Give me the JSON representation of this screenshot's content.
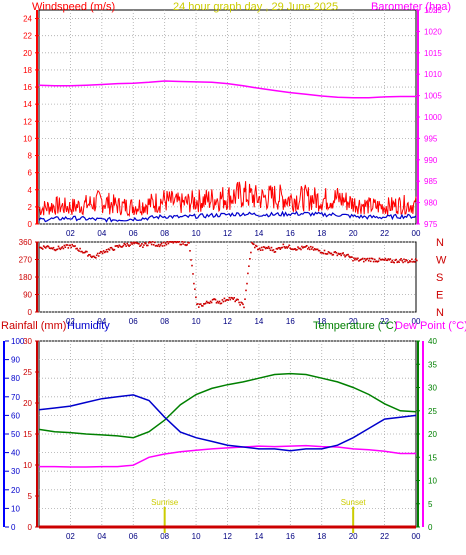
{
  "title": "24 hour graph day , 29 June 2025",
  "colors": {
    "wind": "#ff0000",
    "wind_avg": "#0000cc",
    "barometer": "#ff00ff",
    "direction": "#cc0000",
    "rain": "#cc0000",
    "humidity": "#0000cc",
    "temperature": "#008000",
    "dewpoint": "#ff00ff",
    "sun": "#cccc00",
    "grid": "#aaaaaa",
    "x_tick": "#000080",
    "y_tick_red": "#cc0000"
  },
  "x_ticks": [
    "02",
    "04",
    "06",
    "08",
    "10",
    "12",
    "14",
    "16",
    "18",
    "20",
    "22",
    "00"
  ],
  "top_panel": {
    "left_label": "Windspeed (m/s)",
    "right_label": "Barometer (hpa)",
    "left_ticks": [
      "0",
      "2",
      "4",
      "6",
      "8",
      "10",
      "12",
      "14",
      "16",
      "18",
      "20",
      "22",
      "24"
    ],
    "right_ticks": [
      "975",
      "980",
      "985",
      "990",
      "995",
      "1000",
      "1005",
      "1010",
      "1015",
      "1020",
      "1025"
    ]
  },
  "dir_panel": {
    "left_ticks": [
      "0",
      "90",
      "180",
      "270",
      "360"
    ],
    "right_labels": [
      "N",
      "W",
      "S",
      "E",
      "N"
    ]
  },
  "bottom_panel": {
    "rain_label": "Rainfall (mm)",
    "humidity_label": "Humidity",
    "temp_label": "Temperature (°C)",
    "dew_label": "Dew Point (°C)",
    "humidity_ticks": [
      "0",
      "10",
      "20",
      "30",
      "40",
      "50",
      "60",
      "70",
      "80",
      "90",
      "100"
    ],
    "rain_ticks": [
      "0",
      "5",
      "10",
      "15",
      "20",
      "25",
      "30"
    ],
    "temp_ticks": [
      "0",
      "5",
      "10",
      "15",
      "20",
      "25",
      "30",
      "35",
      "40"
    ],
    "sunrise_label": "Sunrise",
    "sunset_label": "Sunset"
  },
  "chart_data": [
    {
      "type": "line",
      "x_unit": "hour",
      "series": [
        {
          "name": "Windspeed (m/s)",
          "axis": "left",
          "x": [
            0,
            1,
            2,
            3,
            4,
            5,
            6,
            7,
            8,
            9,
            10,
            11,
            12,
            13,
            14,
            15,
            16,
            17,
            18,
            19,
            20,
            21,
            22,
            23,
            24
          ],
          "values": [
            1.5,
            1.8,
            1.6,
            1.9,
            2.2,
            1.8,
            1.7,
            2.0,
            2.3,
            2.0,
            2.4,
            2.5,
            2.8,
            3.0,
            2.7,
            2.8,
            2.6,
            2.7,
            2.6,
            2.8,
            2.2,
            1.9,
            1.8,
            2.1,
            2.0
          ],
          "gusts": [
            2.5,
            3.0,
            2.8,
            3.2,
            3.8,
            3.0,
            2.9,
            3.3,
            3.9,
            3.3,
            3.7,
            4.0,
            4.3,
            4.8,
            4.1,
            4.4,
            4.0,
            4.2,
            3.9,
            4.1,
            3.3,
            2.9,
            2.8,
            3.1,
            3.0
          ]
        },
        {
          "name": "Average wind (m/s)",
          "axis": "left",
          "x": [
            0,
            1,
            2,
            3,
            4,
            5,
            6,
            7,
            8,
            9,
            10,
            11,
            12,
            13,
            14,
            15,
            16,
            17,
            18,
            19,
            20,
            21,
            22,
            23,
            24
          ],
          "values": [
            0.5,
            0.6,
            0.7,
            0.6,
            0.5,
            0.5,
            0.6,
            0.7,
            0.9,
            0.8,
            0.9,
            1.0,
            1.1,
            1.2,
            1.1,
            1.1,
            1.2,
            1.2,
            1.1,
            1.1,
            0.9,
            0.8,
            0.8,
            0.9,
            0.9
          ]
        },
        {
          "name": "Barometer (hpa)",
          "axis": "right",
          "x": [
            0,
            1,
            2,
            3,
            4,
            5,
            6,
            7,
            8,
            9,
            10,
            11,
            12,
            13,
            14,
            15,
            16,
            17,
            18,
            19,
            20,
            21,
            22,
            23,
            24
          ],
          "values": [
            1007.4,
            1007.3,
            1007.3,
            1007.4,
            1007.6,
            1007.8,
            1007.9,
            1008.1,
            1008.4,
            1008.3,
            1008.2,
            1008.1,
            1007.8,
            1007.3,
            1006.7,
            1006.2,
            1005.7,
            1005.3,
            1004.9,
            1004.6,
            1004.5,
            1004.5,
            1004.7,
            1004.8,
            1004.8
          ]
        }
      ],
      "left_ylim": [
        0,
        25
      ],
      "right_ylim": [
        975,
        1025
      ]
    },
    {
      "type": "scatter",
      "series": [
        {
          "name": "Wind direction (°)",
          "x": [
            0,
            0.5,
            1,
            1.5,
            2,
            2.5,
            3,
            3.5,
            4,
            4.5,
            5,
            5.5,
            6,
            6.5,
            7,
            7.5,
            8,
            8.5,
            9,
            9.5,
            10,
            10.5,
            11,
            11.5,
            12,
            12.5,
            13,
            13.5,
            14,
            14.5,
            15,
            15.5,
            16,
            16.5,
            17,
            17.5,
            18,
            18.5,
            19,
            19.5,
            20,
            20.5,
            21,
            21.5,
            22,
            22.5,
            23,
            23.5,
            24
          ],
          "values": [
            330,
            335,
            325,
            330,
            340,
            320,
            300,
            280,
            310,
            320,
            335,
            345,
            350,
            340,
            355,
            345,
            350,
            360,
            355,
            350,
            30,
            40,
            60,
            50,
            70,
            60,
            30,
            350,
            320,
            330,
            315,
            340,
            330,
            325,
            330,
            320,
            310,
            300,
            300,
            290,
            270,
            265,
            270,
            265,
            265,
            260,
            265,
            260,
            265
          ]
        }
      ],
      "ylim": [
        0,
        360
      ]
    },
    {
      "type": "line",
      "series": [
        {
          "name": "Temperature (°C)",
          "axis": "right",
          "x": [
            0,
            1,
            2,
            3,
            4,
            5,
            6,
            7,
            8,
            9,
            10,
            11,
            12,
            13,
            14,
            15,
            16,
            17,
            18,
            19,
            20,
            21,
            22,
            23,
            24
          ],
          "values": [
            21,
            20.5,
            20.3,
            20,
            19.8,
            19.6,
            19.2,
            20.5,
            23,
            26.3,
            28.5,
            29.8,
            30.6,
            31.2,
            32,
            32.8,
            33.0,
            32.8,
            32,
            31.2,
            30,
            28.5,
            26.5,
            25,
            24.8
          ]
        },
        {
          "name": "Dew Point (°C)",
          "axis": "right",
          "x": [
            0,
            1,
            2,
            3,
            4,
            5,
            6,
            7,
            8,
            9,
            10,
            11,
            12,
            13,
            14,
            15,
            16,
            17,
            18,
            19,
            20,
            21,
            22,
            23,
            24
          ],
          "values": [
            13,
            13,
            12.9,
            12.9,
            13,
            13,
            13.3,
            15,
            15.7,
            16.2,
            16.5,
            16.8,
            17.0,
            17.2,
            17.4,
            17.3,
            17.4,
            17.5,
            17.3,
            17.2,
            16.8,
            16.6,
            16.3,
            15.8,
            15.8
          ]
        },
        {
          "name": "Humidity",
          "axis": "left",
          "x": [
            0,
            1,
            2,
            3,
            4,
            5,
            6,
            7,
            8,
            9,
            10,
            11,
            12,
            13,
            14,
            15,
            16,
            17,
            18,
            19,
            20,
            21,
            22,
            23,
            24
          ],
          "values": [
            63,
            64,
            65,
            67,
            69,
            70,
            71,
            68,
            59,
            51,
            48,
            46,
            44,
            43,
            42,
            42,
            41,
            42,
            42,
            44,
            48,
            53,
            58,
            59,
            60
          ]
        },
        {
          "name": "Rainfall (mm)",
          "axis": "left",
          "x": [
            0,
            24
          ],
          "values": [
            0,
            0
          ]
        }
      ],
      "humidity_ylim": [
        0,
        100
      ],
      "rain_ylim": [
        0,
        30
      ],
      "temp_ylim": [
        0,
        40
      ],
      "sunrise_hour": 8,
      "sunset_hour": 20
    }
  ]
}
